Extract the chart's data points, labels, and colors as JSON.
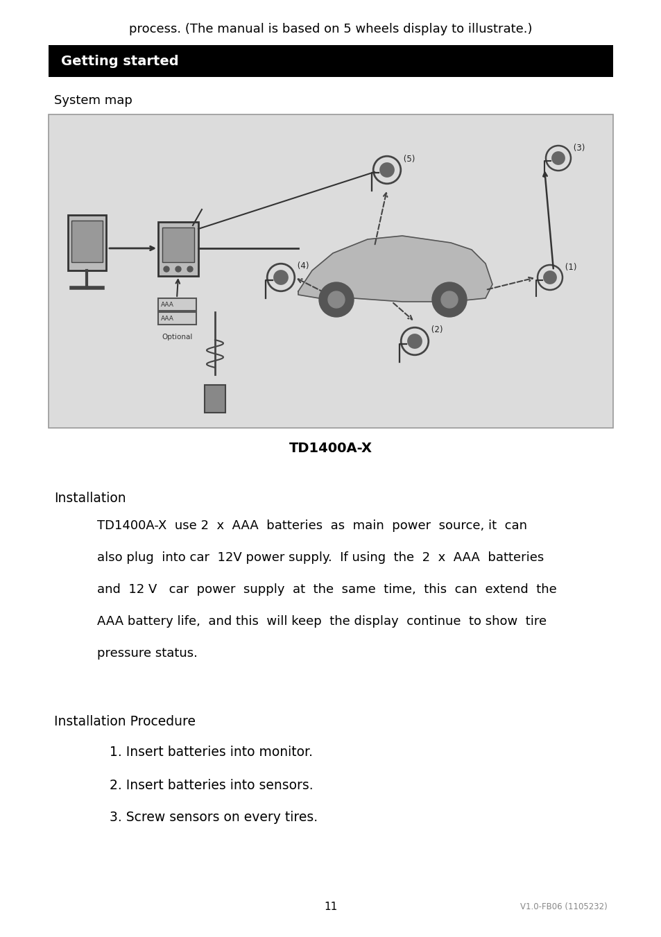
{
  "bg_color": "#ffffff",
  "top_text": "process. (The manual is based on 5 wheels display to illustrate.)",
  "header_bg": "#000000",
  "header_text": "Getting started",
  "header_text_color": "#ffffff",
  "section1_title": "System map",
  "image_caption": "TD1400A-X",
  "section2_title": "Installation",
  "para_lines": [
    "TD1400A-X  use 2  x  AAA  batteries  as  main  power  source, it  can",
    "also plug  into car  12V power supply.  If using  the  2  x  AAA  batteries",
    "and  12 V   car  power  supply  at  the  same  time,  this  can  extend  the",
    "AAA battery life,  and this  will keep  the display  continue  to show  tire",
    "pressure status."
  ],
  "section3_title": "Installation Procedure",
  "list_items": [
    "1. Insert batteries into monitor.",
    "2. Insert batteries into sensors.",
    "3. Screw sensors on every tires."
  ],
  "page_num": "11",
  "footer_right": "V1.0-FB06 (1105232)",
  "img_bg": "#dcdcdc",
  "img_border": "#999999"
}
